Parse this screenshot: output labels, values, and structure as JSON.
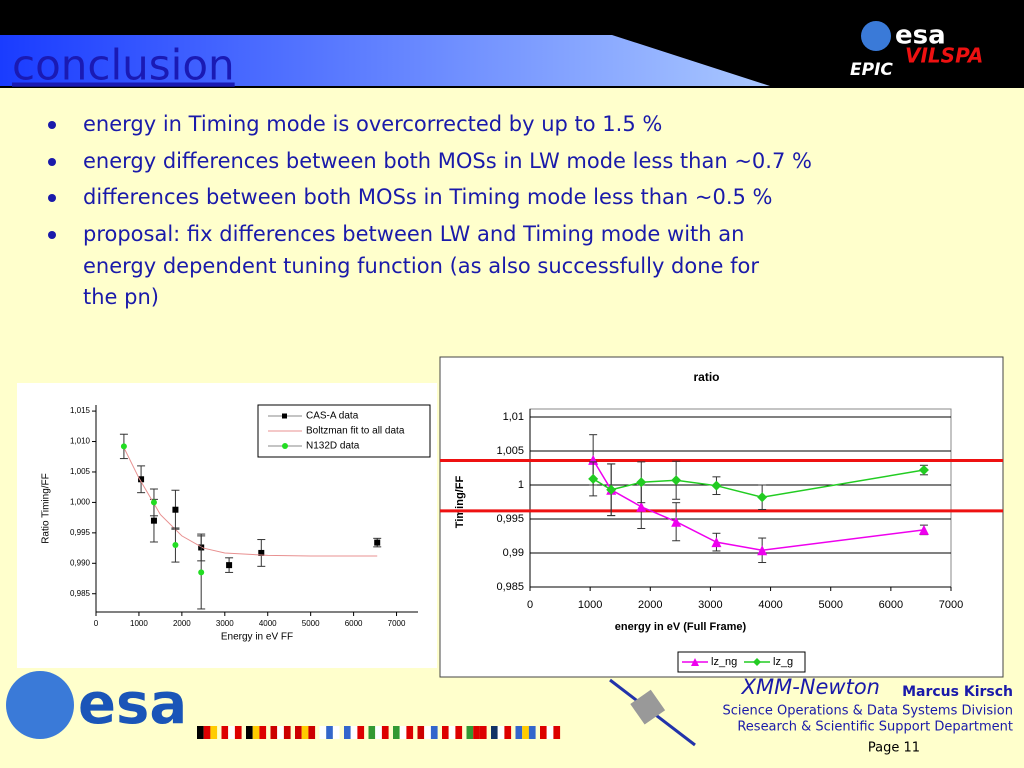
{
  "header": {
    "title": "conclusion",
    "logo": "esa",
    "logo_sub": "VILSPA",
    "instrument": "EPIC"
  },
  "bullets": [
    "energy in Timing mode is overcorrected by up to 1.5 %",
    "energy differences between both MOSs in LW mode less than ~0.7 %",
    "differences between both MOSs in Timing mode less than ~0.5 %",
    "proposal: fix differences between LW and Timing mode with an energy dependent tuning function (as also successfully done for the pn)"
  ],
  "chart_data": [
    {
      "type": "scatter",
      "xlabel": "Energy in eV FF",
      "ylabel": "Ratio Timing/FF",
      "xlim": [
        0,
        7500
      ],
      "ylim": [
        0.982,
        1.016
      ],
      "xticks": [
        0,
        1000,
        2000,
        3000,
        4000,
        5000,
        6000,
        7000
      ],
      "yticks": [
        {
          "value": 0.985,
          "label": "0,985"
        },
        {
          "value": 0.99,
          "label": "0,990"
        },
        {
          "value": 0.995,
          "label": "0,995"
        },
        {
          "value": 1.0,
          "label": "1,000"
        },
        {
          "value": 1.005,
          "label": "1,005"
        },
        {
          "value": 1.01,
          "label": "1,010"
        },
        {
          "value": 1.015,
          "label": "1,015"
        }
      ],
      "grid": false,
      "legend": "top-right",
      "series": [
        {
          "name": "CAS-A data",
          "color": "#000000",
          "marker": "square",
          "line": false,
          "x": [
            1050,
            1350,
            1850,
            2450,
            3100,
            3850,
            6550
          ],
          "values": [
            1.0038,
            0.997,
            0.9988,
            0.9926,
            0.9897,
            0.9917,
            0.9934
          ],
          "errors": [
            0.0022,
            0.0035,
            0.0032,
            0.0022,
            0.0012,
            0.0022,
            0.0007
          ]
        },
        {
          "name": "Boltzman fit to all data",
          "color": "#e89090",
          "marker": "none",
          "line": true,
          "x": [
            650,
            1000,
            1500,
            2000,
            2500,
            3000,
            4000,
            5000,
            6550
          ],
          "values": [
            1.009,
            1.004,
            0.998,
            0.9945,
            0.9925,
            0.9917,
            0.9913,
            0.9912,
            0.9912
          ]
        },
        {
          "name": "N132D data",
          "color": "#22dd22",
          "marker": "circle",
          "line": false,
          "x": [
            650,
            1350,
            1850,
            2450
          ],
          "values": [
            1.0092,
            1.0,
            0.993,
            0.9885
          ],
          "errors": [
            0.002,
            0.0022,
            0.0028,
            0.006
          ]
        }
      ]
    },
    {
      "type": "line",
      "title": "ratio",
      "xlabel": "energy in eV  (Full Frame)",
      "ylabel": "Timing/FF",
      "xlim": [
        0,
        7000
      ],
      "ylim": [
        0.985,
        1.01
      ],
      "xticks": [
        0,
        1000,
        2000,
        3000,
        4000,
        5000,
        6000,
        7000
      ],
      "yticks": [
        {
          "value": 0.985,
          "label": "0,985"
        },
        {
          "value": 0.99,
          "label": "0,99"
        },
        {
          "value": 0.995,
          "label": "0,995"
        },
        1,
        {
          "value": 1.005,
          "label": "1,005"
        },
        {
          "value": 1.01,
          "label": "1,01"
        }
      ],
      "grid": true,
      "legend": "bottom",
      "reference_lines": {
        "color": "#ee1111",
        "values": [
          1.0036,
          0.9962
        ]
      },
      "series": [
        {
          "name": "lz_ng",
          "color": "#ee00ee",
          "marker": "triangle",
          "line": true,
          "x": [
            1050,
            1350,
            1850,
            2430,
            3100,
            3860,
            6550
          ],
          "values": [
            1.0037,
            0.9993,
            0.9968,
            0.9946,
            0.9916,
            0.9904,
            0.9934
          ],
          "errors": [
            0.0037,
            0.0038,
            0.0032,
            0.0028,
            0.0013,
            0.0018,
            0.0007
          ]
        },
        {
          "name": "lz_g",
          "color": "#22cc22",
          "marker": "diamond",
          "line": true,
          "x": [
            1050,
            1350,
            1850,
            2430,
            3100,
            3860,
            6550
          ],
          "values": [
            1.0009,
            0.9993,
            1.0004,
            1.0007,
            0.9999,
            0.9982,
            1.0022
          ],
          "errors": [
            0.0025,
            0.0038,
            0.003,
            0.0028,
            0.0013,
            0.0018,
            0.0007
          ]
        }
      ]
    }
  ],
  "footer": {
    "logo": "esa",
    "mission": "XMM-Newton",
    "author": "Marcus Kirsch",
    "division": "Science Operations & Data Systems Division",
    "department": "Research & Scientific Support Department",
    "page": "Page 11"
  }
}
